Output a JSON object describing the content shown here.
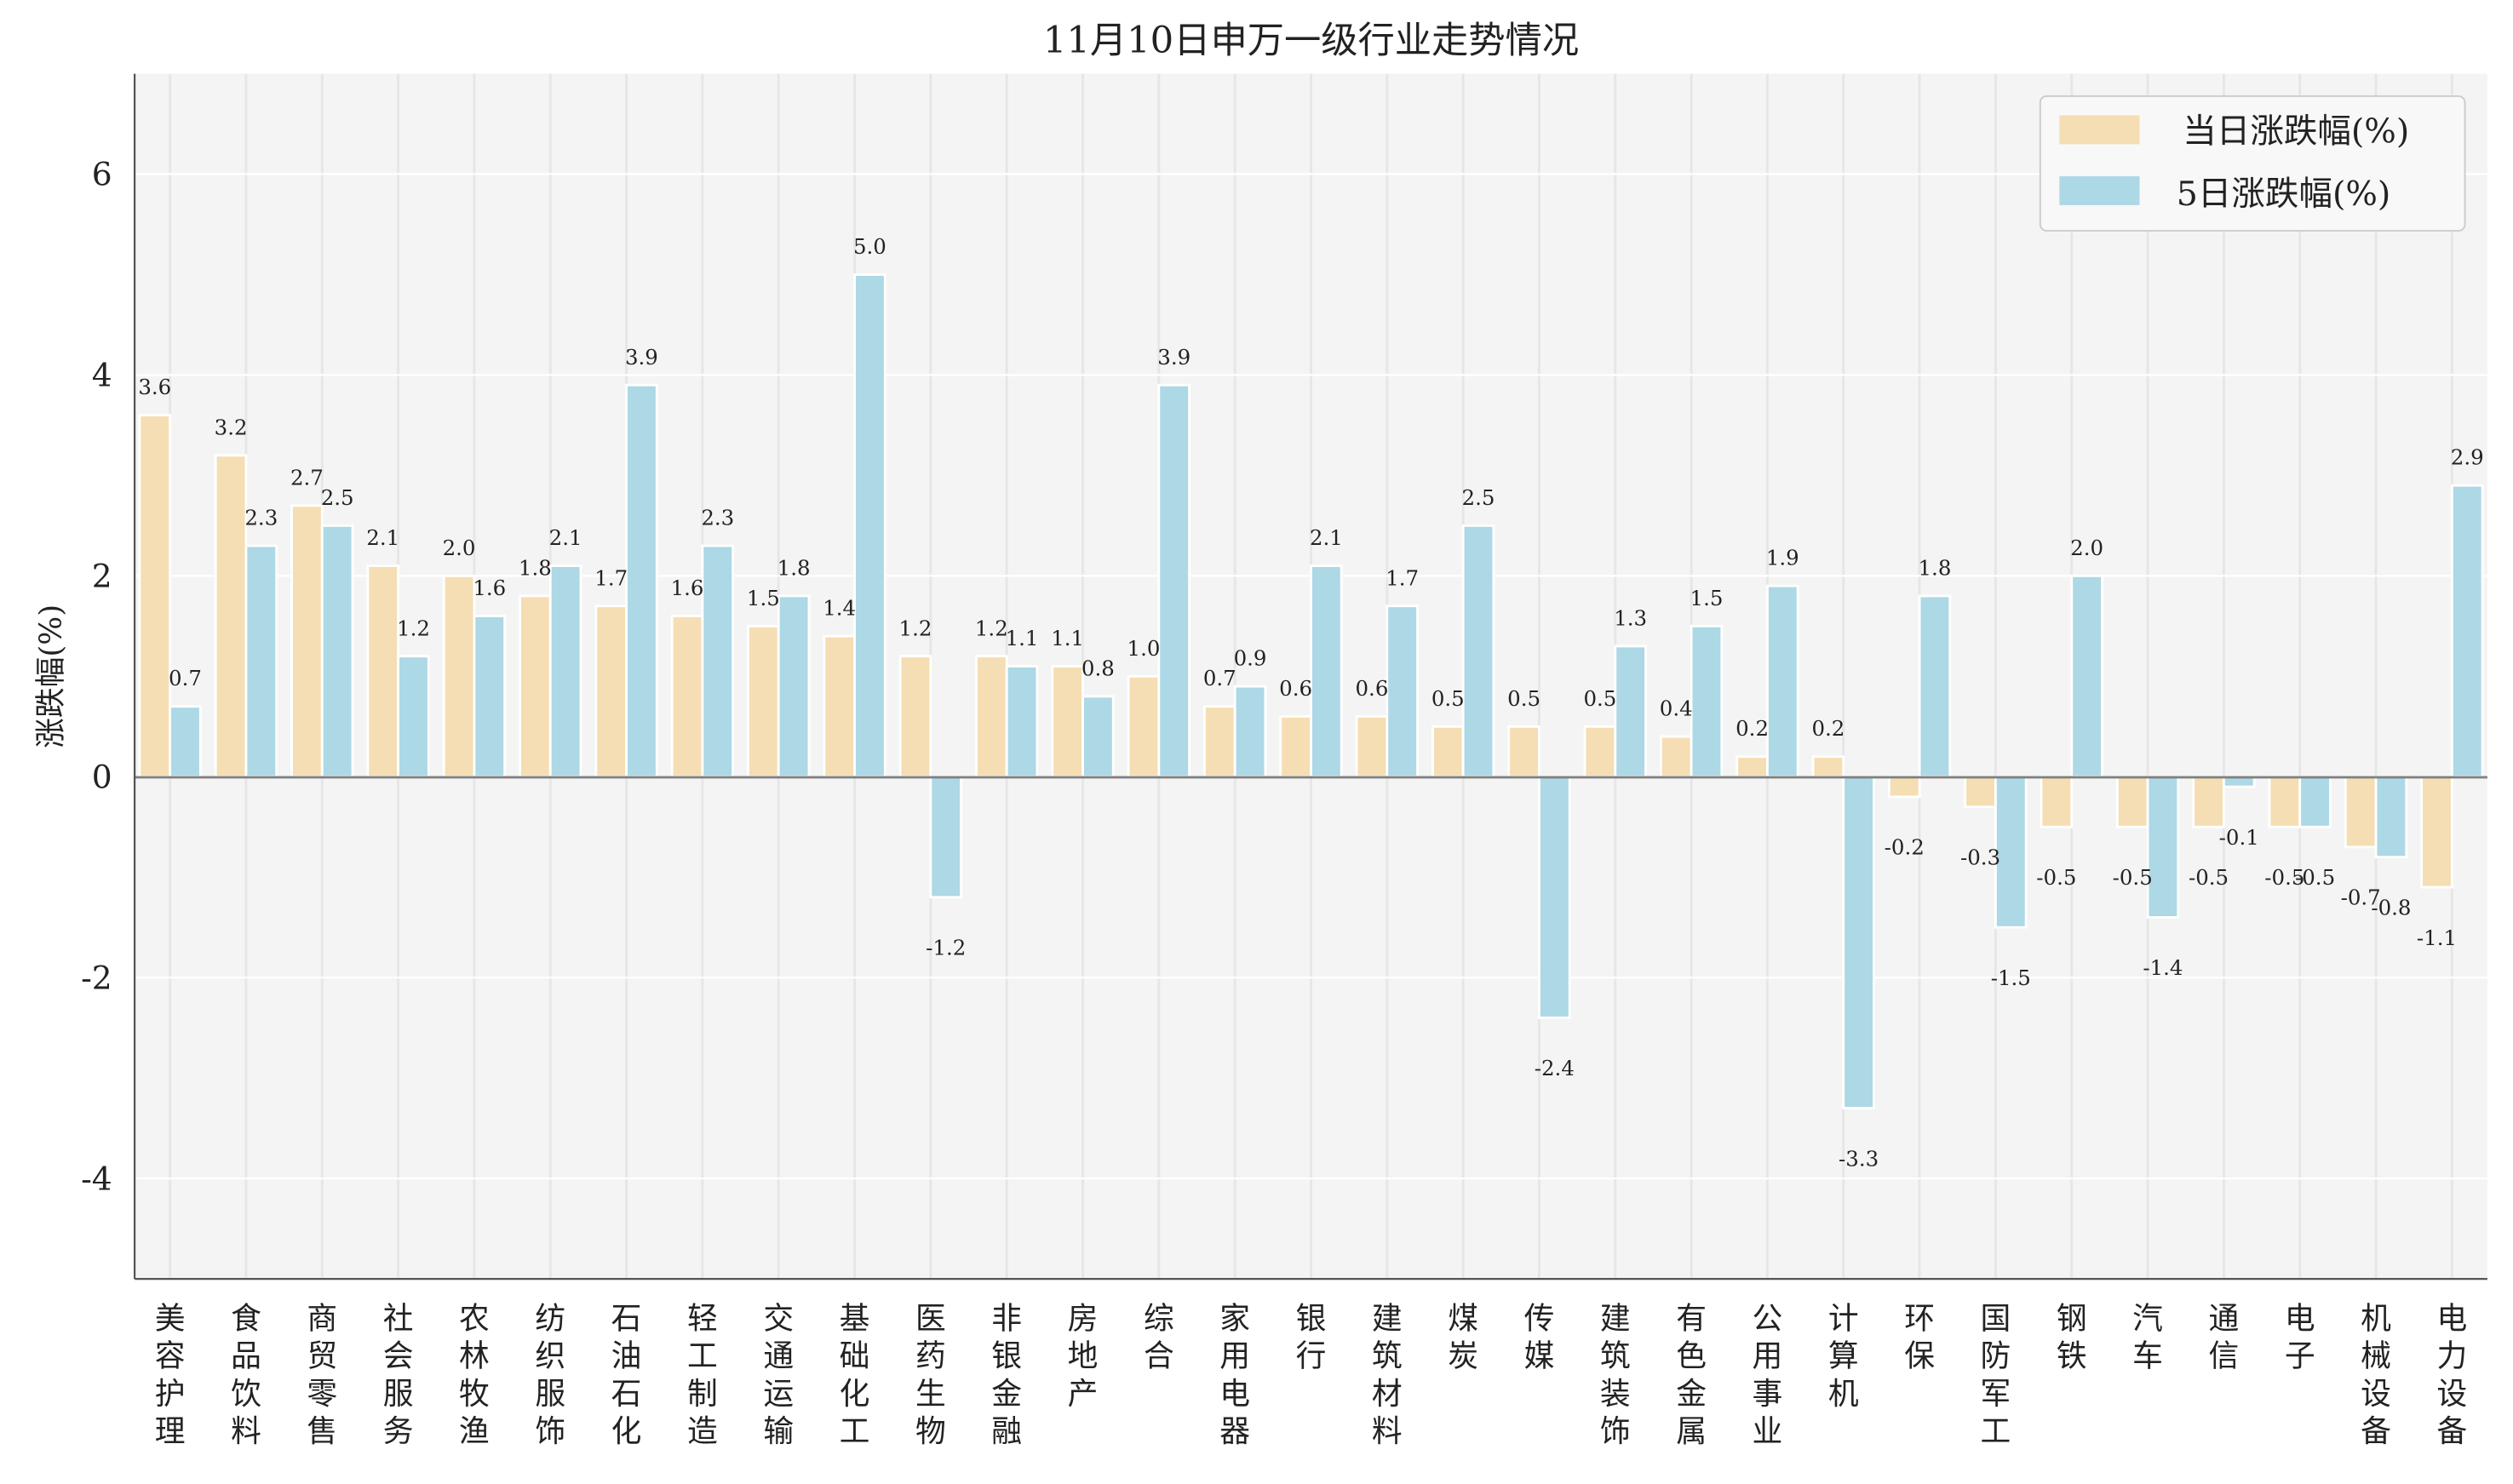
{
  "chart_data": {
    "type": "bar",
    "title": "11月10日申万一级行业走势情况",
    "xlabel": "",
    "ylabel": "涨跌幅(%)",
    "ylim": [
      -5,
      7
    ],
    "yticks": [
      -4,
      -2,
      0,
      2,
      4,
      6
    ],
    "grid": true,
    "legend_position": "top-right",
    "categories": [
      "美容护理",
      "食品饮料",
      "商贸零售",
      "社会服务",
      "农林牧渔",
      "纺织服饰",
      "石油石化",
      "轻工制造",
      "交通运输",
      "基础化工",
      "医药生物",
      "非银金融",
      "房地产",
      "综合",
      "家用电器",
      "银行",
      "建筑材料",
      "煤炭",
      "传媒",
      "建筑装饰",
      "有色金属",
      "公用事业",
      "计算机",
      "环保",
      "国防军工",
      "钢铁",
      "汽车",
      "通信",
      "电子",
      "机械设备",
      "电力设备"
    ],
    "series": [
      {
        "name": "当日涨跌幅(%)",
        "color": "#f5deb3",
        "values": [
          3.6,
          3.2,
          2.7,
          2.1,
          2.0,
          1.8,
          1.7,
          1.6,
          1.5,
          1.4,
          1.2,
          1.2,
          1.1,
          1.0,
          0.7,
          0.6,
          0.6,
          0.5,
          0.5,
          0.5,
          0.4,
          0.2,
          0.2,
          -0.2,
          -0.3,
          -0.5,
          -0.5,
          -0.5,
          -0.5,
          -0.7,
          -1.1
        ]
      },
      {
        "name": "5日涨跌幅(%)",
        "color": "#add8e6",
        "values": [
          0.7,
          2.3,
          2.5,
          1.2,
          1.6,
          2.1,
          3.9,
          2.3,
          1.8,
          5.0,
          -1.2,
          1.1,
          0.8,
          3.9,
          0.9,
          2.1,
          1.7,
          2.5,
          -2.4,
          1.3,
          1.5,
          1.9,
          -3.3,
          1.8,
          -1.5,
          2.0,
          -1.4,
          -0.1,
          -0.5,
          -0.8,
          2.9
        ]
      }
    ]
  }
}
